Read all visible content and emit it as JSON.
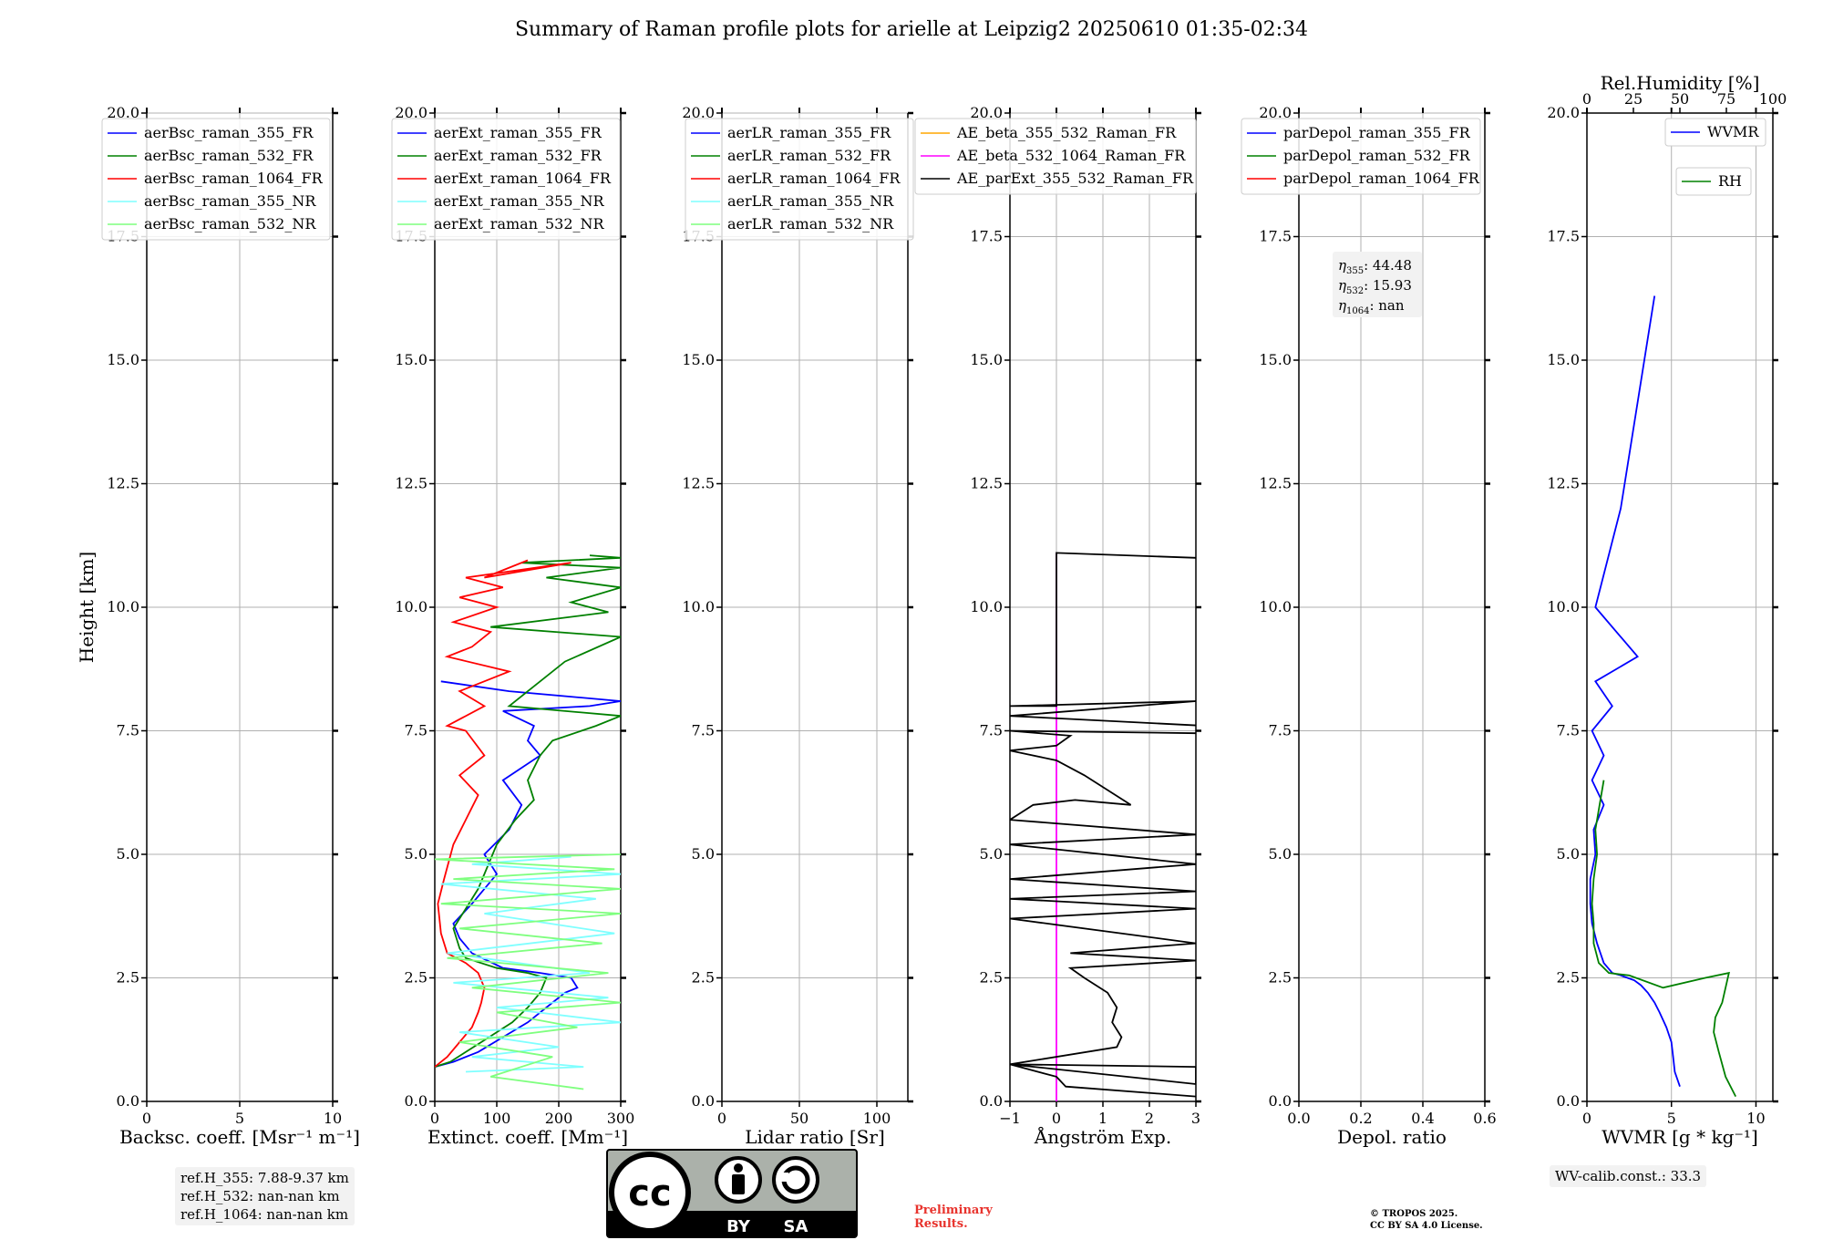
{
  "title": "Summary of Raman profile plots for arielle at Leipzig2 20250610 01:35-02:34",
  "y_axis": {
    "label": "Height [km]",
    "ticks": [
      "0.0",
      "2.5",
      "5.0",
      "7.5",
      "10.0",
      "12.5",
      "15.0",
      "17.5",
      "20.0"
    ],
    "range": [
      0,
      20
    ]
  },
  "panels": [
    {
      "id": "bsc",
      "xlabel": "Backsc. coeff. [Msr⁻¹ m⁻¹]",
      "xrange": [
        0,
        10
      ],
      "xticks": [
        0,
        5,
        10
      ],
      "xticklabels": [
        "0",
        "5",
        "10"
      ],
      "legend": [
        {
          "label": "aerBsc_raman_355_FR",
          "color": "#0000ff"
        },
        {
          "label": "aerBsc_raman_532_FR",
          "color": "#008000"
        },
        {
          "label": "aerBsc_raman_1064_FR",
          "color": "#ff0000"
        },
        {
          "label": "aerBsc_raman_355_NR",
          "color": "#7fffff"
        },
        {
          "label": "aerBsc_raman_532_NR",
          "color": "#7fff7f"
        }
      ]
    },
    {
      "id": "ext",
      "xlabel": "Extinct. coeff. [Mm⁻¹]",
      "xrange": [
        0,
        300
      ],
      "xticks": [
        0,
        100,
        200,
        300
      ],
      "xticklabels": [
        "0",
        "100",
        "200",
        "300"
      ],
      "legend": [
        {
          "label": "aerExt_raman_355_FR",
          "color": "#0000ff"
        },
        {
          "label": "aerExt_raman_532_FR",
          "color": "#008000"
        },
        {
          "label": "aerExt_raman_1064_FR",
          "color": "#ff0000"
        },
        {
          "label": "aerExt_raman_355_NR",
          "color": "#7fffff"
        },
        {
          "label": "aerExt_raman_532_NR",
          "color": "#7fff7f"
        }
      ]
    },
    {
      "id": "lr",
      "xlabel": "Lidar ratio [Sr]",
      "xrange": [
        0,
        120
      ],
      "xticks": [
        0,
        50,
        100
      ],
      "xticklabels": [
        "0",
        "50",
        "100"
      ],
      "legend": [
        {
          "label": "aerLR_raman_355_FR",
          "color": "#0000ff"
        },
        {
          "label": "aerLR_raman_532_FR",
          "color": "#008000"
        },
        {
          "label": "aerLR_raman_1064_FR",
          "color": "#ff0000"
        },
        {
          "label": "aerLR_raman_355_NR",
          "color": "#7fffff"
        },
        {
          "label": "aerLR_raman_532_NR",
          "color": "#7fff7f"
        }
      ]
    },
    {
      "id": "ae",
      "xlabel": "Ångström Exp.",
      "xrange": [
        -1,
        3
      ],
      "xticks": [
        -1,
        0,
        1,
        2,
        3
      ],
      "xticklabels": [
        "−1",
        "0",
        "1",
        "2",
        "3"
      ],
      "legend": [
        {
          "label": "AE_beta_355_532_Raman_FR",
          "color": "#ffa500"
        },
        {
          "label": "AE_beta_532_1064_Raman_FR",
          "color": "#ff00ff"
        },
        {
          "label": "AE_parExt_355_532_Raman_FR",
          "color": "#000000"
        }
      ]
    },
    {
      "id": "depol",
      "xlabel": "Depol. ratio",
      "xrange": [
        0,
        0.6
      ],
      "xticks": [
        0,
        0.2,
        0.4,
        0.6
      ],
      "xticklabels": [
        "0.0",
        "0.2",
        "0.4",
        "0.6"
      ],
      "legend": [
        {
          "label": "parDepol_raman_355_FR",
          "color": "#0000ff"
        },
        {
          "label": "parDepol_raman_532_FR",
          "color": "#008000"
        },
        {
          "label": "parDepol_raman_1064_FR",
          "color": "#ff0000"
        }
      ],
      "eta": [
        {
          "sub": "355",
          "value": "44.48"
        },
        {
          "sub": "532",
          "value": "15.93"
        },
        {
          "sub": "1064",
          "value": "nan"
        }
      ]
    },
    {
      "id": "wv",
      "xlabel": "WVMR [g * kg⁻¹]",
      "xrange": [
        0,
        11
      ],
      "xticks": [
        0,
        5,
        10
      ],
      "xticklabels": [
        "0",
        "5",
        "10"
      ],
      "top_label": "Rel.Humidity [%]",
      "top_range": [
        0,
        100
      ],
      "top_ticks": [
        0,
        25,
        50,
        75,
        100
      ],
      "top_ticklabels": [
        "0",
        "25",
        "50",
        "75",
        "100"
      ],
      "legend": [
        {
          "label": "WVMR",
          "color": "#0000ff"
        },
        {
          "label": "RH",
          "color": "#008000"
        }
      ]
    }
  ],
  "chart_data": [
    {
      "type": "line",
      "panel": "Extinct. coeff. [Mm⁻¹]",
      "series": [
        {
          "name": "aerExt_raman_355_FR",
          "color": "#0000ff",
          "x": [
            0,
            30,
            70,
            110,
            150,
            180,
            210,
            230,
            220,
            170,
            110,
            60,
            40,
            30,
            60,
            100,
            80,
            120,
            140,
            110,
            170,
            150,
            160,
            110,
            250,
            300,
            120,
            10
          ],
          "y": [
            0.7,
            0.8,
            1.0,
            1.3,
            1.6,
            1.9,
            2.2,
            2.3,
            2.5,
            2.6,
            2.7,
            3.0,
            3.3,
            3.6,
            4.0,
            4.6,
            5.0,
            5.5,
            6.0,
            6.5,
            7.0,
            7.3,
            7.6,
            7.9,
            8.0,
            8.1,
            8.3,
            8.5
          ]
        },
        {
          "name": "aerExt_raman_532_FR",
          "color": "#008000",
          "x": [
            0,
            25,
            50,
            75,
            100,
            125,
            150,
            170,
            180,
            150,
            100,
            50,
            40,
            30,
            70,
            100,
            130,
            160,
            150,
            170,
            190,
            260,
            300,
            120,
            210,
            300,
            90,
            280,
            220,
            300,
            180,
            300,
            140,
            300,
            250
          ],
          "y": [
            0.7,
            0.8,
            1.0,
            1.2,
            1.4,
            1.6,
            1.9,
            2.2,
            2.5,
            2.6,
            2.7,
            2.9,
            3.1,
            3.5,
            4.3,
            5.2,
            5.7,
            6.1,
            6.5,
            7.0,
            7.3,
            7.6,
            7.8,
            8.0,
            8.9,
            9.4,
            9.6,
            9.9,
            10.1,
            10.4,
            10.6,
            10.8,
            10.9,
            11.0,
            11.05
          ]
        },
        {
          "name": "aerExt_raman_1064_FR",
          "color": "#ff0000",
          "x": [
            0,
            20,
            40,
            60,
            70,
            75,
            80,
            70,
            50,
            20,
            10,
            5,
            15,
            30,
            50,
            70,
            40,
            80,
            50,
            20,
            80,
            40,
            120,
            20,
            60,
            90,
            30,
            100,
            40,
            110,
            50,
            220,
            80,
            150
          ],
          "y": [
            0.7,
            0.9,
            1.2,
            1.5,
            1.8,
            2.0,
            2.3,
            2.6,
            2.8,
            3.0,
            3.4,
            4.0,
            4.5,
            5.2,
            5.7,
            6.2,
            6.6,
            7.0,
            7.5,
            7.6,
            8.0,
            8.3,
            8.7,
            9.0,
            9.2,
            9.5,
            9.7,
            10.0,
            10.2,
            10.4,
            10.6,
            10.9,
            10.6,
            10.95
          ]
        },
        {
          "name": "aerExt_raman_355_NR",
          "color": "#7fffff",
          "x": [
            50,
            240,
            60,
            200,
            40,
            300,
            100,
            280,
            30,
            250,
            20,
            290,
            80,
            260,
            10,
            300,
            60,
            220
          ],
          "y": [
            0.6,
            0.7,
            0.9,
            1.1,
            1.4,
            1.6,
            1.9,
            2.1,
            2.4,
            2.6,
            3.0,
            3.4,
            3.8,
            4.1,
            4.4,
            4.6,
            4.8,
            4.95
          ]
        },
        {
          "name": "aerExt_raman_532_NR",
          "color": "#7fff7f",
          "x": [
            240,
            90,
            190,
            40,
            230,
            100,
            300,
            60,
            280,
            20,
            270,
            40,
            300,
            10,
            300,
            30,
            290,
            0,
            300
          ],
          "y": [
            0.25,
            0.5,
            0.9,
            1.2,
            1.5,
            1.8,
            2.0,
            2.3,
            2.6,
            2.9,
            3.2,
            3.5,
            3.8,
            4.0,
            4.3,
            4.5,
            4.7,
            4.9,
            5.0
          ]
        }
      ]
    },
    {
      "type": "line",
      "panel": "Ångström Exp.",
      "series": [
        {
          "name": "AE_beta_532_1064_Raman_FR",
          "color": "#ff00ff",
          "x": [
            0,
            0
          ],
          "y": [
            0,
            11.1
          ]
        },
        {
          "name": "AE_parExt_355_532_Raman_FR",
          "color": "#000000",
          "x": [
            3,
            0.2,
            0,
            -1,
            3,
            3,
            -1,
            1.3,
            1.4,
            1.2,
            1.3,
            1.1,
            0.6,
            0.3,
            3,
            0.3,
            3,
            -1,
            3,
            -1,
            3,
            -1,
            3,
            -1,
            3,
            -1,
            -0.5,
            0.4,
            1.6,
            0.6,
            0,
            -1,
            0,
            0.3,
            -1,
            3,
            3.2,
            -1,
            3,
            -1,
            0,
            0,
            3
          ],
          "y": [
            0.1,
            0.3,
            0.5,
            0.75,
            0.7,
            0.35,
            0.75,
            1.1,
            1.3,
            1.6,
            1.9,
            2.2,
            2.5,
            2.7,
            2.85,
            3.0,
            3.2,
            3.7,
            3.9,
            4.1,
            4.25,
            4.5,
            4.8,
            5.2,
            5.4,
            5.7,
            6.0,
            6.1,
            6.0,
            6.6,
            6.9,
            7.1,
            7.2,
            7.4,
            7.5,
            7.45,
            7.6,
            7.8,
            8.1,
            8.0,
            8.0,
            11.1,
            11.0
          ]
        }
      ]
    },
    {
      "type": "line",
      "panel": "WVMR [g * kg⁻¹]",
      "series": [
        {
          "name": "WVMR",
          "color": "#0000ff",
          "x": [
            5.5,
            5.2,
            5.1,
            5.0,
            4.7,
            4.3,
            4.0,
            3.6,
            3.2,
            2.8,
            2.4,
            2.0,
            1.5,
            1.0,
            0.6,
            0.3,
            0.2,
            0.2,
            0.5,
            0.4,
            1.0,
            0.3,
            1.0,
            0.3,
            1.5,
            0.5,
            3.0,
            0.5,
            2.0,
            4.0
          ],
          "y": [
            0.3,
            0.6,
            0.9,
            1.2,
            1.5,
            1.8,
            2.0,
            2.2,
            2.35,
            2.45,
            2.5,
            2.55,
            2.6,
            2.8,
            3.2,
            3.6,
            4.0,
            4.5,
            5.0,
            5.5,
            6.0,
            6.5,
            7.0,
            7.5,
            8.0,
            8.5,
            9.0,
            10.0,
            12.0,
            16.3
          ]
        },
        {
          "name": "RH",
          "color": "#008000",
          "x": [
            8.8,
            8.2,
            7.8,
            7.5,
            7.6,
            8.0,
            8.2,
            8.4,
            7.0,
            4.5,
            2.5,
            1.3,
            0.7,
            0.4,
            0.4,
            0.3,
            0.4,
            0.6,
            0.5,
            1.0
          ],
          "y": [
            0.1,
            0.5,
            1.0,
            1.4,
            1.7,
            2.0,
            2.3,
            2.6,
            2.5,
            2.3,
            2.55,
            2.6,
            2.8,
            3.2,
            3.6,
            4.0,
            4.5,
            5.0,
            5.5,
            6.5
          ]
        }
      ]
    }
  ],
  "ref_box": [
    "ref.H_355: 7.88-9.37 km",
    "ref.H_532: nan-nan km",
    "ref.H_1064: nan-nan km"
  ],
  "wv_calib": "WV-calib.const.: 33.3",
  "preliminary": [
    "Preliminary",
    "Results."
  ],
  "copyright": [
    "© TROPOS 2025.",
    "CC BY SA 4.0 License."
  ],
  "license_badge": {
    "left": "BY",
    "right": "SA"
  }
}
